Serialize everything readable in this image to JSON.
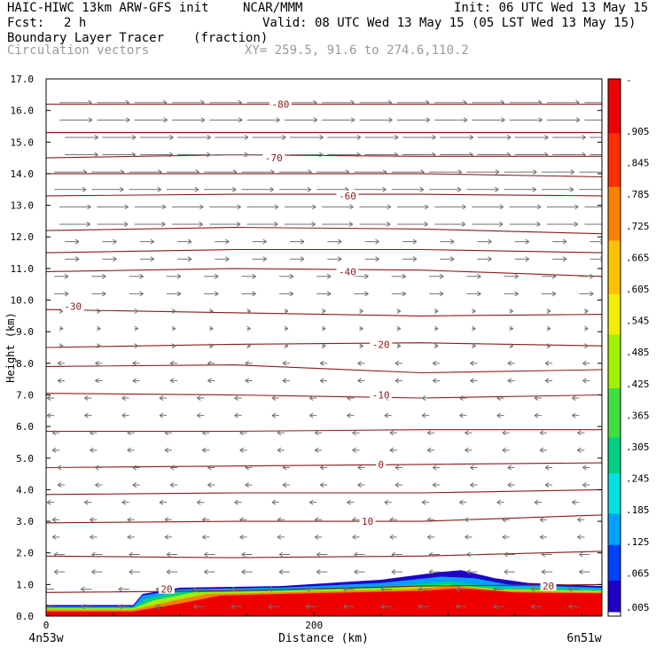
{
  "header": {
    "model": "HAIC-HIWC 13km ARW-GFS init",
    "org": "NCAR/MMM",
    "init": "Init: 06 UTC Wed 13 May 15",
    "fcst_label": "Fcst:",
    "fcst_value": "2 h",
    "valid": "Valid: 08 UTC Wed 13 May 15 (05 LST Wed 13 May 15)",
    "field_name": "Boundary Layer Tracer",
    "field_units": "(fraction)",
    "vector_label": "Circulation vectors",
    "xy_label": "XY= 259.5, 91.6 to 274.6,110.2"
  },
  "colors": {
    "contour": "#8b1a1a",
    "arrow": "#707070",
    "scale": [
      "#ffffff",
      "#1e00c8",
      "#0050ff",
      "#00a0ff",
      "#00e0e0",
      "#00d080",
      "#40e040",
      "#a0f000",
      "#f0f000",
      "#ffc000",
      "#ff8000",
      "#ff3000",
      "#ee0000"
    ]
  },
  "chart_data": {
    "type": "heatmap",
    "title": "Boundary Layer Tracer (fraction)",
    "xlabel": "Distance (km)",
    "ylabel": "Height (km)",
    "xlim": [
      0,
      415
    ],
    "ylim": [
      0,
      17
    ],
    "x_ticks": [
      {
        "value": 0,
        "label": "0"
      },
      {
        "value": 200,
        "label": "200"
      }
    ],
    "x_endpoints": {
      "left": "4n53w",
      "right": "6n51w"
    },
    "y_ticks": [
      "0.0",
      "1.0",
      "2.0",
      "3.0",
      "4.0",
      "5.0",
      "6.0",
      "7.0",
      "8.0",
      "9.0",
      "10.0",
      "11.0",
      "12.0",
      "13.0",
      "14.0",
      "15.0",
      "16.0",
      "17.0"
    ],
    "colorbar_labels": [
      "-",
      ".905",
      ".845",
      ".785",
      ".725",
      ".665",
      ".605",
      ".545",
      ".485",
      ".425",
      ".365",
      ".305",
      ".245",
      ".185",
      ".125",
      ".065",
      ".005"
    ],
    "contour_labels": [
      {
        "text": "-80",
        "x": 175,
        "y": 16.2
      },
      {
        "text": "-70",
        "x": 170,
        "y": 14.5
      },
      {
        "text": "-60",
        "x": 225,
        "y": 13.3
      },
      {
        "text": "-40",
        "x": 225,
        "y": 10.9
      },
      {
        "text": "-30",
        "x": 20,
        "y": 9.8
      },
      {
        "text": "-20",
        "x": 250,
        "y": 8.6
      },
      {
        "text": "-10",
        "x": 250,
        "y": 7.0
      },
      {
        "text": "0",
        "x": 250,
        "y": 4.8
      },
      {
        "text": "10",
        "x": 240,
        "y": 3.0
      },
      {
        "text": "20",
        "x": 90,
        "y": 0.85
      },
      {
        "text": "20",
        "x": 375,
        "y": 0.95
      }
    ],
    "contour_lines": [
      {
        "y": [
          0.75,
          0.8,
          0.95,
          1.0
        ]
      },
      {
        "y": [
          1.9,
          1.85,
          1.9,
          2.05
        ]
      },
      {
        "y": [
          2.95,
          3.0,
          3.0,
          3.2
        ]
      },
      {
        "y": [
          3.85,
          3.9,
          3.9,
          4.0
        ]
      },
      {
        "y": [
          4.7,
          4.75,
          4.8,
          4.85
        ]
      },
      {
        "y": [
          5.85,
          5.85,
          5.9,
          5.9
        ]
      },
      {
        "y": [
          7.05,
          7.0,
          6.9,
          7.0
        ]
      },
      {
        "y": [
          7.9,
          7.95,
          7.7,
          7.8
        ]
      },
      {
        "y": [
          8.5,
          8.6,
          8.65,
          8.55
        ]
      },
      {
        "y": [
          9.7,
          9.6,
          9.5,
          9.55
        ]
      },
      {
        "y": [
          10.9,
          11.0,
          10.95,
          10.75
        ]
      },
      {
        "y": [
          11.5,
          11.6,
          11.6,
          11.5
        ]
      },
      {
        "y": [
          12.2,
          12.3,
          12.25,
          12.1
        ]
      },
      {
        "y": [
          13.3,
          13.35,
          13.35,
          13.3
        ]
      },
      {
        "y": [
          14.0,
          14.0,
          14.0,
          13.9
        ]
      },
      {
        "y": [
          14.5,
          14.6,
          14.55,
          14.55
        ]
      },
      {
        "y": [
          15.3,
          15.3,
          15.3,
          15.3
        ]
      },
      {
        "y": [
          16.2,
          16.2,
          16.2,
          16.2
        ]
      }
    ],
    "tracer_layers": [
      {
        "level": 1,
        "top": [
          [
            0,
            0.35
          ],
          [
            65,
            0.35
          ],
          [
            72,
            0.7
          ],
          [
            100,
            0.9
          ],
          [
            175,
            0.95
          ],
          [
            250,
            1.15
          ],
          [
            295,
            1.4
          ],
          [
            310,
            1.45
          ],
          [
            335,
            1.2
          ],
          [
            360,
            1.05
          ],
          [
            415,
            0.95
          ]
        ]
      },
      {
        "level": 3,
        "top": [
          [
            0,
            0.3
          ],
          [
            65,
            0.3
          ],
          [
            72,
            0.65
          ],
          [
            100,
            0.85
          ],
          [
            175,
            0.9
          ],
          [
            250,
            1.05
          ],
          [
            295,
            1.25
          ],
          [
            320,
            1.2
          ],
          [
            345,
            1.0
          ],
          [
            415,
            0.9
          ]
        ]
      },
      {
        "level": 5,
        "top": [
          [
            0,
            0.28
          ],
          [
            65,
            0.28
          ],
          [
            75,
            0.55
          ],
          [
            100,
            0.8
          ],
          [
            175,
            0.85
          ],
          [
            260,
            0.95
          ],
          [
            300,
            1.1
          ],
          [
            330,
            0.95
          ],
          [
            415,
            0.85
          ]
        ]
      },
      {
        "level": 7,
        "top": [
          [
            0,
            0.25
          ],
          [
            65,
            0.25
          ],
          [
            80,
            0.5
          ],
          [
            110,
            0.75
          ],
          [
            175,
            0.8
          ],
          [
            260,
            0.9
          ],
          [
            300,
            1.0
          ],
          [
            340,
            0.85
          ],
          [
            415,
            0.8
          ]
        ]
      },
      {
        "level": 10,
        "top": [
          [
            0,
            0.2
          ],
          [
            65,
            0.2
          ],
          [
            90,
            0.45
          ],
          [
            120,
            0.7
          ],
          [
            175,
            0.75
          ],
          [
            270,
            0.85
          ],
          [
            305,
            0.95
          ],
          [
            345,
            0.8
          ],
          [
            415,
            0.75
          ]
        ]
      },
      {
        "level": 12,
        "top": [
          [
            0,
            0.15
          ],
          [
            65,
            0.15
          ],
          [
            100,
            0.4
          ],
          [
            130,
            0.65
          ],
          [
            175,
            0.7
          ],
          [
            280,
            0.8
          ],
          [
            310,
            0.88
          ],
          [
            350,
            0.75
          ],
          [
            415,
            0.72
          ]
        ]
      }
    ]
  }
}
